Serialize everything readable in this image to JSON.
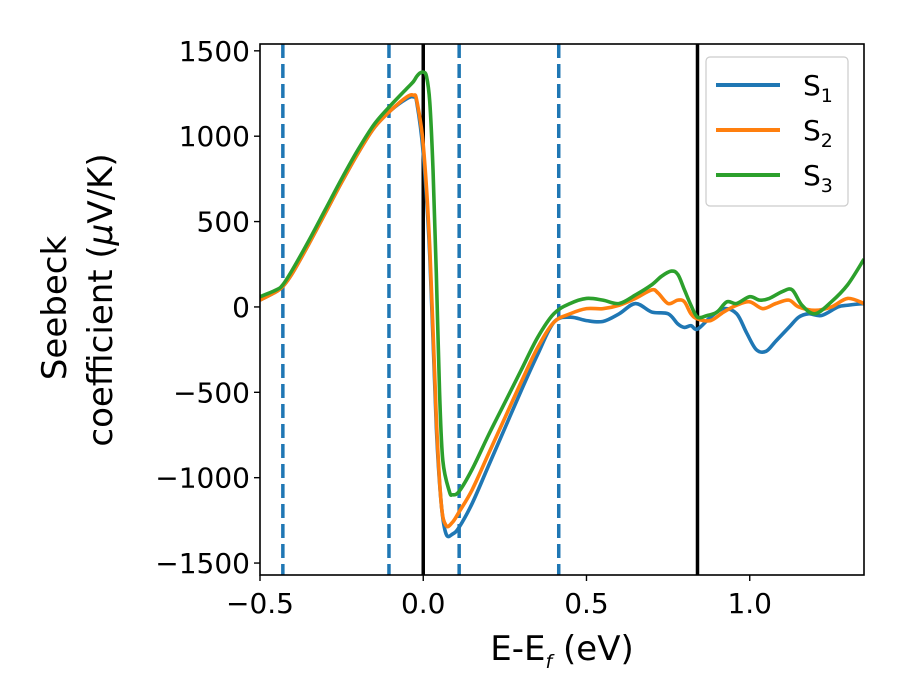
{
  "chart_data": {
    "type": "line",
    "xlabel": "E-E",
    "xlabel_sub": "f",
    "xlabel_unit": " (eV)",
    "ylabel_line1": "Seebeck",
    "ylabel_line2": "coefficient  (",
    "ylabel_mu": "μ",
    "ylabel_unit": "V/K)",
    "xlim": [
      -0.5,
      1.35
    ],
    "ylim": [
      -1570,
      1540
    ],
    "grid": false,
    "legend_position": "top-right",
    "x_ticks": [
      {
        "value": -0.5,
        "label": "−0.5"
      },
      {
        "value": 0.0,
        "label": "0.0"
      },
      {
        "value": 0.5,
        "label": "0.5"
      },
      {
        "value": 1.0,
        "label": "1.0"
      }
    ],
    "y_ticks": [
      {
        "value": 1500,
        "label": "1500"
      },
      {
        "value": 1000,
        "label": "1000"
      },
      {
        "value": 500,
        "label": "500"
      },
      {
        "value": 0,
        "label": "0"
      },
      {
        "value": -500,
        "label": "−500"
      },
      {
        "value": -1000,
        "label": "−1000"
      },
      {
        "value": -1500,
        "label": "−1500"
      }
    ],
    "vertical_lines": {
      "dashed": {
        "color": "#1f77b4",
        "x": [
          -0.43,
          -0.105,
          0.11,
          0.415
        ]
      },
      "solid": {
        "color": "#000000",
        "x": [
          0.0,
          0.84
        ]
      }
    },
    "series": [
      {
        "name": "S",
        "name_sub": "1",
        "color": "#1f77b4",
        "x": [
          -0.5,
          -0.45,
          -0.43,
          -0.4,
          -0.35,
          -0.3,
          -0.25,
          -0.2,
          -0.15,
          -0.1,
          -0.05,
          -0.03,
          -0.02,
          0.0,
          0.02,
          0.04,
          0.055,
          0.07,
          0.09,
          0.11,
          0.15,
          0.2,
          0.25,
          0.3,
          0.35,
          0.4,
          0.45,
          0.5,
          0.55,
          0.6,
          0.65,
          0.7,
          0.75,
          0.78,
          0.8,
          0.82,
          0.84,
          0.88,
          0.92,
          0.96,
          0.99,
          1.02,
          1.05,
          1.08,
          1.12,
          1.15,
          1.18,
          1.22,
          1.27,
          1.3,
          1.35
        ],
        "values": [
          40,
          90,
          120,
          200,
          370,
          550,
          730,
          900,
          1050,
          1150,
          1220,
          1230,
          1200,
          900,
          300,
          -700,
          -1150,
          -1330,
          -1330,
          -1290,
          -1150,
          -930,
          -710,
          -490,
          -280,
          -90,
          -60,
          -80,
          -85,
          -40,
          20,
          -30,
          -40,
          -100,
          -120,
          -110,
          -130,
          -60,
          -10,
          -40,
          -150,
          -250,
          -260,
          -200,
          -120,
          -60,
          -40,
          -50,
          0,
          10,
          20
        ]
      },
      {
        "name": "S",
        "name_sub": "2",
        "color": "#ff7f0e",
        "x": [
          -0.5,
          -0.45,
          -0.43,
          -0.4,
          -0.35,
          -0.3,
          -0.25,
          -0.2,
          -0.15,
          -0.1,
          -0.05,
          -0.03,
          -0.02,
          0.0,
          0.02,
          0.04,
          0.055,
          0.07,
          0.09,
          0.11,
          0.15,
          0.2,
          0.25,
          0.3,
          0.35,
          0.4,
          0.45,
          0.5,
          0.55,
          0.6,
          0.65,
          0.7,
          0.72,
          0.75,
          0.78,
          0.8,
          0.82,
          0.84,
          0.88,
          0.92,
          0.96,
          1.0,
          1.04,
          1.08,
          1.12,
          1.15,
          1.2,
          1.25,
          1.3,
          1.35
        ],
        "values": [
          40,
          90,
          120,
          200,
          370,
          550,
          730,
          900,
          1050,
          1150,
          1230,
          1240,
          1210,
          950,
          350,
          -650,
          -1150,
          -1280,
          -1260,
          -1200,
          -1070,
          -860,
          -650,
          -440,
          -240,
          -90,
          -40,
          -10,
          -10,
          10,
          50,
          100,
          80,
          20,
          40,
          30,
          -40,
          -70,
          -80,
          -30,
          10,
          30,
          -10,
          20,
          40,
          0,
          -20,
          0,
          50,
          20
        ]
      },
      {
        "name": "S",
        "name_sub": "3",
        "color": "#2ca02c",
        "x": [
          -0.5,
          -0.45,
          -0.43,
          -0.4,
          -0.35,
          -0.3,
          -0.25,
          -0.2,
          -0.15,
          -0.1,
          -0.05,
          -0.03,
          -0.02,
          -0.01,
          0.0,
          0.01,
          0.02,
          0.03,
          0.04,
          0.05,
          0.06,
          0.08,
          0.09,
          0.11,
          0.15,
          0.2,
          0.25,
          0.3,
          0.35,
          0.4,
          0.45,
          0.5,
          0.55,
          0.6,
          0.65,
          0.7,
          0.73,
          0.76,
          0.78,
          0.8,
          0.82,
          0.84,
          0.87,
          0.9,
          0.93,
          0.96,
          1.0,
          1.03,
          1.06,
          1.1,
          1.13,
          1.16,
          1.2,
          1.25,
          1.3,
          1.35
        ],
        "values": [
          60,
          100,
          130,
          220,
          390,
          570,
          750,
          920,
          1070,
          1180,
          1280,
          1320,
          1350,
          1370,
          1375,
          1350,
          1200,
          800,
          200,
          -500,
          -900,
          -1080,
          -1100,
          -1080,
          -950,
          -750,
          -560,
          -370,
          -180,
          -40,
          20,
          50,
          40,
          20,
          70,
          130,
          180,
          210,
          190,
          100,
          10,
          -60,
          -50,
          -30,
          30,
          20,
          60,
          40,
          50,
          90,
          100,
          10,
          -40,
          30,
          130,
          280
        ]
      }
    ]
  }
}
